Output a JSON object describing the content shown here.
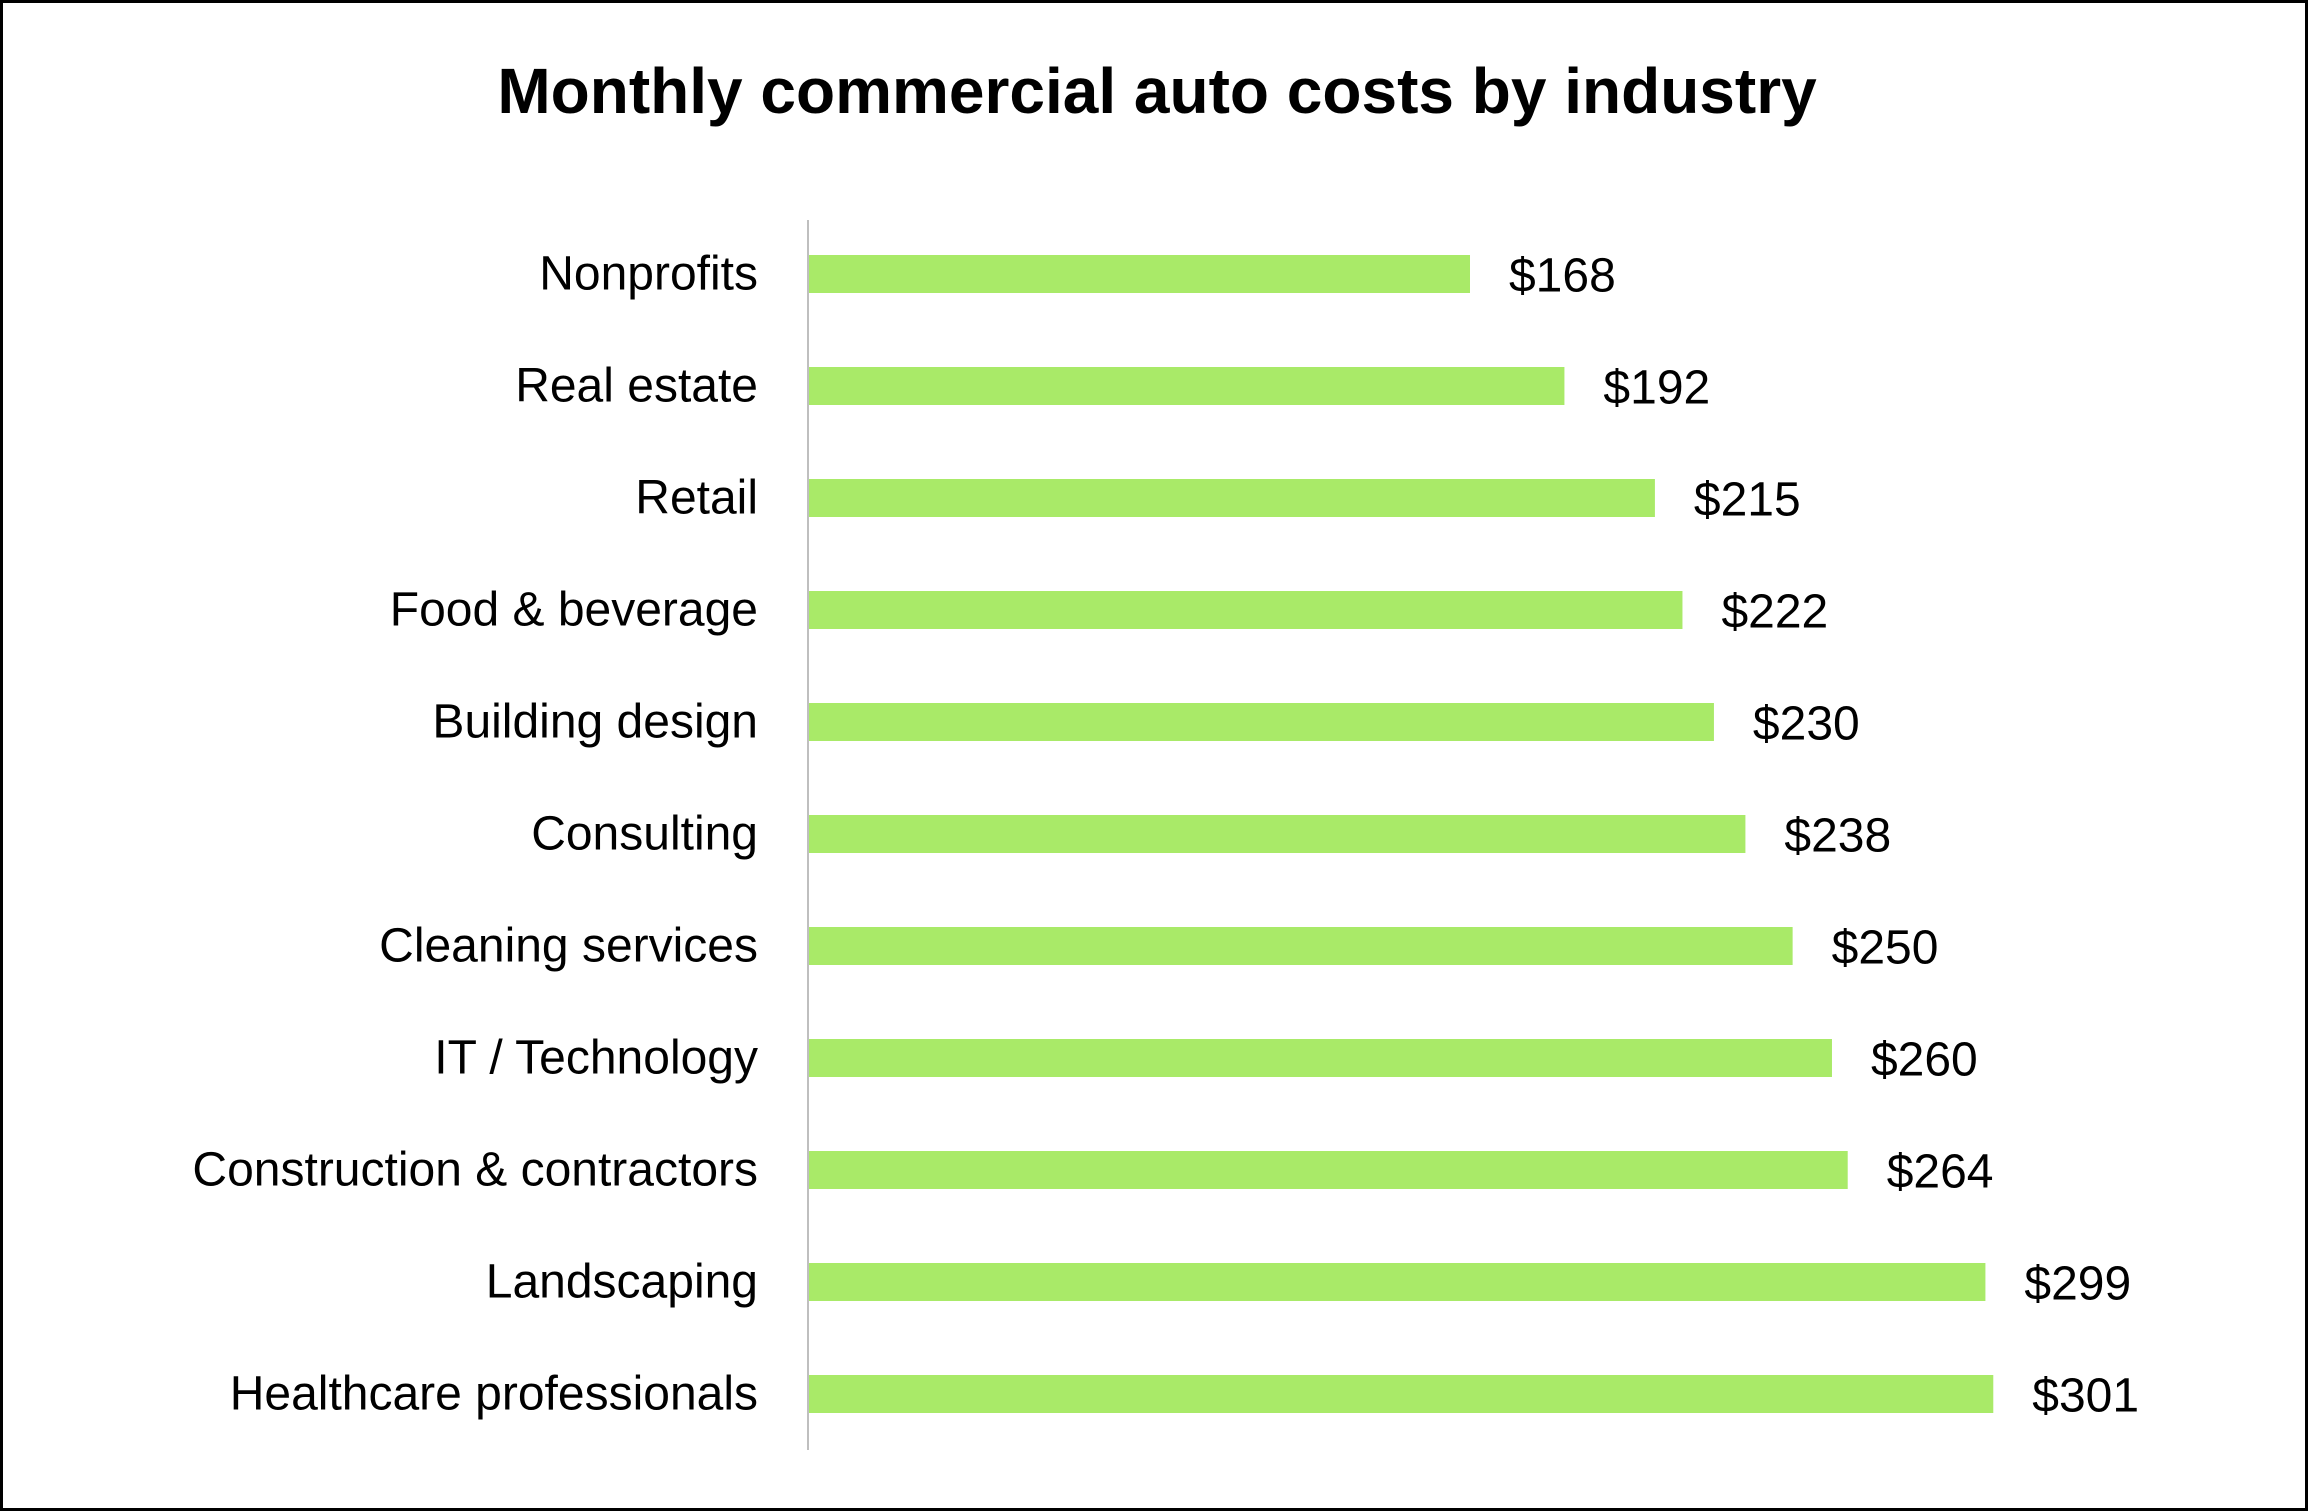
{
  "chart_data": {
    "type": "bar",
    "orientation": "horizontal",
    "title": "Monthly commercial auto costs by industry",
    "categories": [
      "Nonprofits",
      "Real estate",
      "Retail",
      "Food & beverage",
      "Building design",
      "Consulting",
      "Cleaning services",
      "IT / Technology",
      "Construction & contractors",
      "Landscaping",
      "Healthcare professionals"
    ],
    "values": [
      168,
      192,
      215,
      222,
      230,
      238,
      250,
      260,
      264,
      299,
      301
    ],
    "value_labels": [
      "$168",
      "$192",
      "$215",
      "$222",
      "$230",
      "$238",
      "$250",
      "$260",
      "$264",
      "$299",
      "$301"
    ],
    "xlim": [
      0,
      310
    ],
    "grid": false,
    "legend": "none",
    "bar_color": "#A9EA68",
    "axis_color": "#BFBFBF"
  }
}
